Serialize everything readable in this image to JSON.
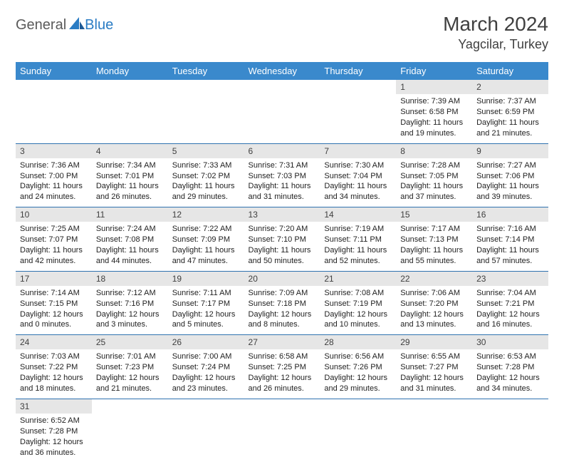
{
  "logo": {
    "general": "General",
    "blue": "Blue"
  },
  "title": "March 2024",
  "location": "Yagcilar, Turkey",
  "colors": {
    "header_bg": "#3a89cc",
    "header_text": "#ffffff",
    "daynum_bg": "#e6e6e6",
    "daynum_text": "#404040",
    "week_divider": "#2f72b0",
    "body_text": "#222222",
    "logo_general": "#5a5a5a",
    "logo_blue": "#2a7cc4"
  },
  "typography": {
    "title_size": 28,
    "location_size": 18,
    "header_size": 13,
    "cell_size": 11,
    "daynum_size": 12
  },
  "dayHeaders": [
    "Sunday",
    "Monday",
    "Tuesday",
    "Wednesday",
    "Thursday",
    "Friday",
    "Saturday"
  ],
  "weeks": [
    [
      null,
      null,
      null,
      null,
      null,
      {
        "num": "1",
        "sunrise": "Sunrise: 7:39 AM",
        "sunset": "Sunset: 6:58 PM",
        "day1": "Daylight: 11 hours",
        "day2": "and 19 minutes."
      },
      {
        "num": "2",
        "sunrise": "Sunrise: 7:37 AM",
        "sunset": "Sunset: 6:59 PM",
        "day1": "Daylight: 11 hours",
        "day2": "and 21 minutes."
      }
    ],
    [
      {
        "num": "3",
        "sunrise": "Sunrise: 7:36 AM",
        "sunset": "Sunset: 7:00 PM",
        "day1": "Daylight: 11 hours",
        "day2": "and 24 minutes."
      },
      {
        "num": "4",
        "sunrise": "Sunrise: 7:34 AM",
        "sunset": "Sunset: 7:01 PM",
        "day1": "Daylight: 11 hours",
        "day2": "and 26 minutes."
      },
      {
        "num": "5",
        "sunrise": "Sunrise: 7:33 AM",
        "sunset": "Sunset: 7:02 PM",
        "day1": "Daylight: 11 hours",
        "day2": "and 29 minutes."
      },
      {
        "num": "6",
        "sunrise": "Sunrise: 7:31 AM",
        "sunset": "Sunset: 7:03 PM",
        "day1": "Daylight: 11 hours",
        "day2": "and 31 minutes."
      },
      {
        "num": "7",
        "sunrise": "Sunrise: 7:30 AM",
        "sunset": "Sunset: 7:04 PM",
        "day1": "Daylight: 11 hours",
        "day2": "and 34 minutes."
      },
      {
        "num": "8",
        "sunrise": "Sunrise: 7:28 AM",
        "sunset": "Sunset: 7:05 PM",
        "day1": "Daylight: 11 hours",
        "day2": "and 37 minutes."
      },
      {
        "num": "9",
        "sunrise": "Sunrise: 7:27 AM",
        "sunset": "Sunset: 7:06 PM",
        "day1": "Daylight: 11 hours",
        "day2": "and 39 minutes."
      }
    ],
    [
      {
        "num": "10",
        "sunrise": "Sunrise: 7:25 AM",
        "sunset": "Sunset: 7:07 PM",
        "day1": "Daylight: 11 hours",
        "day2": "and 42 minutes."
      },
      {
        "num": "11",
        "sunrise": "Sunrise: 7:24 AM",
        "sunset": "Sunset: 7:08 PM",
        "day1": "Daylight: 11 hours",
        "day2": "and 44 minutes."
      },
      {
        "num": "12",
        "sunrise": "Sunrise: 7:22 AM",
        "sunset": "Sunset: 7:09 PM",
        "day1": "Daylight: 11 hours",
        "day2": "and 47 minutes."
      },
      {
        "num": "13",
        "sunrise": "Sunrise: 7:20 AM",
        "sunset": "Sunset: 7:10 PM",
        "day1": "Daylight: 11 hours",
        "day2": "and 50 minutes."
      },
      {
        "num": "14",
        "sunrise": "Sunrise: 7:19 AM",
        "sunset": "Sunset: 7:11 PM",
        "day1": "Daylight: 11 hours",
        "day2": "and 52 minutes."
      },
      {
        "num": "15",
        "sunrise": "Sunrise: 7:17 AM",
        "sunset": "Sunset: 7:13 PM",
        "day1": "Daylight: 11 hours",
        "day2": "and 55 minutes."
      },
      {
        "num": "16",
        "sunrise": "Sunrise: 7:16 AM",
        "sunset": "Sunset: 7:14 PM",
        "day1": "Daylight: 11 hours",
        "day2": "and 57 minutes."
      }
    ],
    [
      {
        "num": "17",
        "sunrise": "Sunrise: 7:14 AM",
        "sunset": "Sunset: 7:15 PM",
        "day1": "Daylight: 12 hours",
        "day2": "and 0 minutes."
      },
      {
        "num": "18",
        "sunrise": "Sunrise: 7:12 AM",
        "sunset": "Sunset: 7:16 PM",
        "day1": "Daylight: 12 hours",
        "day2": "and 3 minutes."
      },
      {
        "num": "19",
        "sunrise": "Sunrise: 7:11 AM",
        "sunset": "Sunset: 7:17 PM",
        "day1": "Daylight: 12 hours",
        "day2": "and 5 minutes."
      },
      {
        "num": "20",
        "sunrise": "Sunrise: 7:09 AM",
        "sunset": "Sunset: 7:18 PM",
        "day1": "Daylight: 12 hours",
        "day2": "and 8 minutes."
      },
      {
        "num": "21",
        "sunrise": "Sunrise: 7:08 AM",
        "sunset": "Sunset: 7:19 PM",
        "day1": "Daylight: 12 hours",
        "day2": "and 10 minutes."
      },
      {
        "num": "22",
        "sunrise": "Sunrise: 7:06 AM",
        "sunset": "Sunset: 7:20 PM",
        "day1": "Daylight: 12 hours",
        "day2": "and 13 minutes."
      },
      {
        "num": "23",
        "sunrise": "Sunrise: 7:04 AM",
        "sunset": "Sunset: 7:21 PM",
        "day1": "Daylight: 12 hours",
        "day2": "and 16 minutes."
      }
    ],
    [
      {
        "num": "24",
        "sunrise": "Sunrise: 7:03 AM",
        "sunset": "Sunset: 7:22 PM",
        "day1": "Daylight: 12 hours",
        "day2": "and 18 minutes."
      },
      {
        "num": "25",
        "sunrise": "Sunrise: 7:01 AM",
        "sunset": "Sunset: 7:23 PM",
        "day1": "Daylight: 12 hours",
        "day2": "and 21 minutes."
      },
      {
        "num": "26",
        "sunrise": "Sunrise: 7:00 AM",
        "sunset": "Sunset: 7:24 PM",
        "day1": "Daylight: 12 hours",
        "day2": "and 23 minutes."
      },
      {
        "num": "27",
        "sunrise": "Sunrise: 6:58 AM",
        "sunset": "Sunset: 7:25 PM",
        "day1": "Daylight: 12 hours",
        "day2": "and 26 minutes."
      },
      {
        "num": "28",
        "sunrise": "Sunrise: 6:56 AM",
        "sunset": "Sunset: 7:26 PM",
        "day1": "Daylight: 12 hours",
        "day2": "and 29 minutes."
      },
      {
        "num": "29",
        "sunrise": "Sunrise: 6:55 AM",
        "sunset": "Sunset: 7:27 PM",
        "day1": "Daylight: 12 hours",
        "day2": "and 31 minutes."
      },
      {
        "num": "30",
        "sunrise": "Sunrise: 6:53 AM",
        "sunset": "Sunset: 7:28 PM",
        "day1": "Daylight: 12 hours",
        "day2": "and 34 minutes."
      }
    ],
    [
      {
        "num": "31",
        "sunrise": "Sunrise: 6:52 AM",
        "sunset": "Sunset: 7:28 PM",
        "day1": "Daylight: 12 hours",
        "day2": "and 36 minutes."
      },
      null,
      null,
      null,
      null,
      null,
      null
    ]
  ]
}
